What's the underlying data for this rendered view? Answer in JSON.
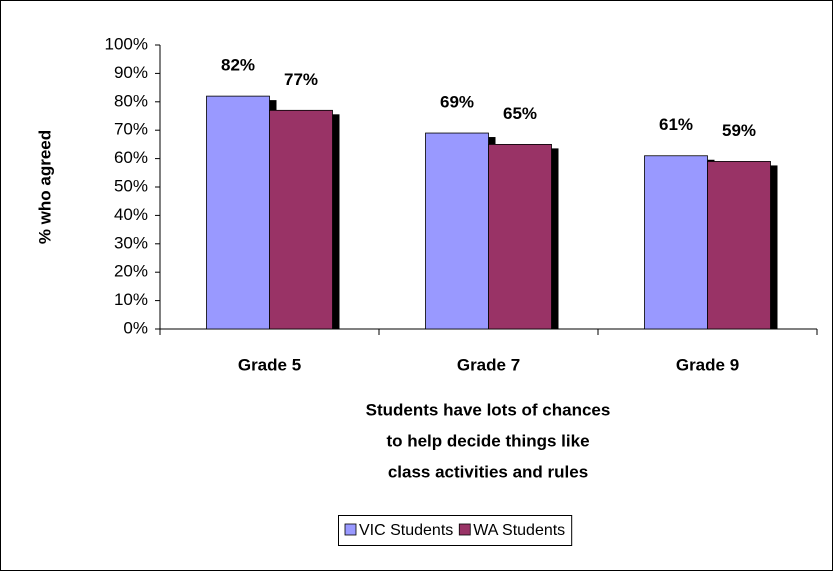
{
  "chart_data": {
    "type": "bar",
    "ylabel": "% who agreed",
    "xlabel": [
      "Students have lots of chances",
      "to help decide things like",
      "class activities and rules"
    ],
    "categories": [
      "Grade 5",
      "Grade 7",
      "Grade 9"
    ],
    "series": [
      {
        "name": "VIC Students",
        "color": "#9999ff",
        "values": [
          82,
          69,
          61
        ],
        "value_labels": [
          "82%",
          "69%",
          "61%"
        ]
      },
      {
        "name": "WA Students",
        "color": "#993366",
        "values": [
          77,
          65,
          59
        ],
        "value_labels": [
          "77%",
          "65%",
          "59%"
        ]
      }
    ],
    "ylim": [
      0,
      100
    ],
    "yticks": [
      {
        "value": 0,
        "label": "0%"
      },
      {
        "value": 10,
        "label": "10%"
      },
      {
        "value": 20,
        "label": "20%"
      },
      {
        "value": 30,
        "label": "30%"
      },
      {
        "value": 40,
        "label": "40%"
      },
      {
        "value": 50,
        "label": "50%"
      },
      {
        "value": 60,
        "label": "60%"
      },
      {
        "value": 70,
        "label": "70%"
      },
      {
        "value": 80,
        "label": "80%"
      },
      {
        "value": 90,
        "label": "90%"
      },
      {
        "value": 100,
        "label": "100%"
      }
    ],
    "legend": "bottom"
  }
}
